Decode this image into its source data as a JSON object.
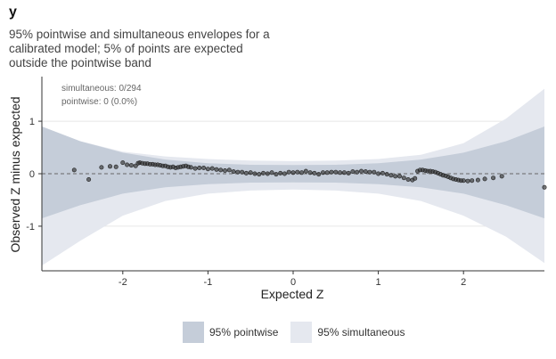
{
  "chart_data": {
    "type": "scatter",
    "title": "y",
    "subtitle_lines": [
      "95% pointwise and simultaneous envelopes for a",
      "calibrated model; 5% of points are expected",
      "outside the pointwise band"
    ],
    "xlabel": "Expected Z",
    "ylabel": "Observed Z minus expected",
    "xlim": [
      -2.95,
      2.95
    ],
    "ylim": [
      -1.85,
      1.85
    ],
    "x_ticks": [
      -2,
      -1,
      0,
      1,
      2
    ],
    "x_tick_labels": [
      "-2",
      "-1",
      "0",
      "1",
      "2"
    ],
    "y_ticks": [
      -1,
      0,
      1
    ],
    "y_tick_labels": [
      "-1",
      "0",
      "1"
    ],
    "reference_line": {
      "y": 0,
      "style": "dashed"
    },
    "annotations": [
      "simultaneous: 0/294",
      "pointwise: 0 (0.0%)"
    ],
    "grid": "horizontal",
    "legend": {
      "placement": "bottom",
      "entries": [
        {
          "label": "95% pointwise",
          "color": "#c5cdd9"
        },
        {
          "label": "95% simultaneous",
          "color": "#e5e8ef"
        }
      ]
    },
    "colors": {
      "pointwise_band": "#c5cdd9",
      "simultaneous_band": "#e5e8ef",
      "points": "#333333"
    },
    "bands": {
      "pointwise": {
        "x": [
          -2.95,
          -2.5,
          -2.0,
          -1.5,
          -1.0,
          -0.5,
          0.0,
          0.5,
          1.0,
          1.5,
          2.0,
          2.5,
          2.95
        ],
        "upper": [
          0.9,
          0.62,
          0.4,
          0.27,
          0.2,
          0.17,
          0.165,
          0.17,
          0.2,
          0.27,
          0.4,
          0.62,
          0.9
        ],
        "lower": [
          -0.85,
          -0.6,
          -0.38,
          -0.26,
          -0.2,
          -0.17,
          -0.165,
          -0.17,
          -0.2,
          -0.26,
          -0.38,
          -0.6,
          -0.85
        ]
      },
      "simultaneous": {
        "x": [
          -2.95,
          -2.5,
          -2.0,
          -1.5,
          -1.0,
          -0.5,
          0.0,
          0.5,
          1.0,
          1.5,
          2.0,
          2.5,
          2.95
        ],
        "upper": [
          0.9,
          0.62,
          0.42,
          0.33,
          0.28,
          0.25,
          0.24,
          0.25,
          0.28,
          0.36,
          0.58,
          1.05,
          1.62
        ],
        "lower": [
          -1.75,
          -1.28,
          -0.8,
          -0.52,
          -0.38,
          -0.32,
          -0.3,
          -0.32,
          -0.38,
          -0.52,
          -0.8,
          -1.2,
          -1.7
        ]
      }
    },
    "points": {
      "x": [
        -2.57,
        -2.4,
        -2.25,
        -2.15,
        -2.08,
        -2.0,
        -1.95,
        -1.9,
        -1.85,
        -1.82,
        -1.8,
        -1.77,
        -1.74,
        -1.71,
        -1.68,
        -1.65,
        -1.62,
        -1.59,
        -1.56,
        -1.53,
        -1.5,
        -1.47,
        -1.44,
        -1.41,
        -1.38,
        -1.35,
        -1.32,
        -1.29,
        -1.26,
        -1.23,
        -1.2,
        -1.15,
        -1.1,
        -1.05,
        -1.0,
        -0.95,
        -0.9,
        -0.85,
        -0.8,
        -0.75,
        -0.7,
        -0.65,
        -0.6,
        -0.55,
        -0.5,
        -0.45,
        -0.4,
        -0.35,
        -0.3,
        -0.25,
        -0.2,
        -0.15,
        -0.1,
        -0.05,
        0.0,
        0.05,
        0.1,
        0.15,
        0.2,
        0.25,
        0.3,
        0.35,
        0.4,
        0.45,
        0.5,
        0.55,
        0.6,
        0.65,
        0.7,
        0.75,
        0.8,
        0.85,
        0.9,
        0.95,
        1.0,
        1.05,
        1.1,
        1.15,
        1.2,
        1.25,
        1.3,
        1.35,
        1.4,
        1.43,
        1.46,
        1.49,
        1.52,
        1.55,
        1.58,
        1.61,
        1.64,
        1.67,
        1.7,
        1.73,
        1.76,
        1.79,
        1.82,
        1.85,
        1.88,
        1.91,
        1.94,
        1.97,
        2.0,
        2.05,
        2.1,
        2.17,
        2.25,
        2.35,
        2.45,
        2.95
      ],
      "y": [
        0.07,
        -0.11,
        0.12,
        0.14,
        0.13,
        0.21,
        0.17,
        0.16,
        0.15,
        0.2,
        0.21,
        0.2,
        0.19,
        0.19,
        0.18,
        0.18,
        0.17,
        0.17,
        0.16,
        0.15,
        0.15,
        0.13,
        0.12,
        0.13,
        0.11,
        0.12,
        0.13,
        0.14,
        0.15,
        0.13,
        0.12,
        0.1,
        0.11,
        0.11,
        0.09,
        0.1,
        0.08,
        0.07,
        0.06,
        0.07,
        0.04,
        0.03,
        0.03,
        0.01,
        0.02,
        0.0,
        -0.01,
        0.01,
        0.0,
        0.02,
        -0.01,
        0.01,
        0.0,
        0.03,
        0.02,
        0.03,
        0.02,
        0.05,
        0.02,
        0.01,
        -0.01,
        0.02,
        0.02,
        0.03,
        0.03,
        0.02,
        0.02,
        0.01,
        0.04,
        0.03,
        0.05,
        0.04,
        0.03,
        0.03,
        0.0,
        0.01,
        -0.01,
        -0.03,
        -0.05,
        -0.05,
        -0.08,
        -0.11,
        -0.12,
        -0.09,
        0.05,
        0.07,
        0.07,
        0.06,
        0.05,
        0.05,
        0.04,
        0.03,
        0.01,
        -0.01,
        -0.03,
        -0.04,
        -0.06,
        -0.08,
        -0.1,
        -0.11,
        -0.12,
        -0.13,
        -0.13,
        -0.14,
        -0.13,
        -0.12,
        -0.1,
        -0.08,
        -0.05,
        -0.26
      ]
    }
  }
}
